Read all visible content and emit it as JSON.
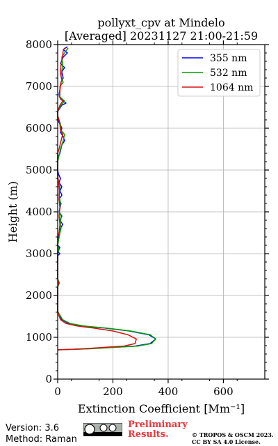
{
  "chart_data": {
    "type": "line",
    "title": "pollyxt_cpv at Mindelo",
    "subtitle": "[Averaged] 20231127 21:00-21:59",
    "xlabel": "Extinction Coefficient [Mm⁻¹]",
    "ylabel": "Height (m)",
    "xlim": [
      0,
      750
    ],
    "ylim": [
      0,
      8000
    ],
    "xticks": [
      "0",
      "200",
      "400",
      "600"
    ],
    "yticks": [
      "0",
      "1000",
      "2000",
      "3000",
      "4000",
      "5000",
      "6000",
      "7000",
      "8000"
    ],
    "grid": true,
    "legend_position": "top-right",
    "series": [
      {
        "name": "355 nm",
        "color": "#0000ff",
        "points": [
          [
            0,
            700
          ],
          [
            90,
            720
          ],
          [
            200,
            760
          ],
          [
            280,
            790
          ],
          [
            335,
            850
          ],
          [
            355,
            960
          ],
          [
            330,
            1060
          ],
          [
            260,
            1150
          ],
          [
            170,
            1220
          ],
          [
            90,
            1270
          ],
          [
            40,
            1330
          ],
          [
            15,
            1420
          ],
          [
            5,
            1550
          ],
          [
            0,
            1620
          ],
          [
            0,
            2200
          ],
          [
            5,
            2300
          ],
          [
            0,
            2400
          ],
          [
            0,
            2950
          ],
          [
            8,
            3000
          ],
          [
            0,
            3050
          ],
          [
            8,
            3150
          ],
          [
            0,
            3200
          ],
          [
            5,
            3500
          ],
          [
            10,
            3600
          ],
          [
            18,
            3700
          ],
          [
            8,
            3800
          ],
          [
            15,
            3900
          ],
          [
            5,
            4000
          ],
          [
            12,
            4200
          ],
          [
            5,
            4300
          ],
          [
            15,
            4400
          ],
          [
            8,
            4500
          ],
          [
            15,
            4600
          ],
          [
            5,
            4700
          ],
          [
            10,
            4800
          ],
          [
            3,
            4900
          ],
          [
            0,
            5000
          ],
          [
            0,
            5300
          ],
          [
            8,
            5400
          ],
          [
            15,
            5600
          ],
          [
            25,
            5700
          ],
          [
            20,
            5800
          ],
          [
            10,
            5900
          ],
          [
            15,
            6000
          ],
          [
            8,
            6100
          ],
          [
            0,
            6200
          ],
          [
            0,
            6400
          ],
          [
            15,
            6550
          ],
          [
            30,
            6600
          ],
          [
            10,
            6700
          ],
          [
            5,
            6800
          ],
          [
            12,
            7100
          ],
          [
            20,
            7200
          ],
          [
            15,
            7350
          ],
          [
            25,
            7450
          ],
          [
            10,
            7550
          ],
          [
            20,
            7700
          ],
          [
            35,
            7800
          ],
          [
            20,
            7880
          ],
          [
            35,
            7950
          ]
        ]
      },
      {
        "name": "532 nm",
        "color": "#00a000",
        "points": [
          [
            0,
            700
          ],
          [
            100,
            720
          ],
          [
            210,
            760
          ],
          [
            290,
            790
          ],
          [
            340,
            850
          ],
          [
            355,
            960
          ],
          [
            335,
            1060
          ],
          [
            265,
            1150
          ],
          [
            175,
            1220
          ],
          [
            95,
            1270
          ],
          [
            45,
            1330
          ],
          [
            18,
            1420
          ],
          [
            6,
            1550
          ],
          [
            0,
            1620
          ],
          [
            0,
            2200
          ],
          [
            6,
            2300
          ],
          [
            0,
            2400
          ],
          [
            0,
            3000
          ],
          [
            5,
            3100
          ],
          [
            0,
            3200
          ],
          [
            8,
            3500
          ],
          [
            12,
            3600
          ],
          [
            10,
            3700
          ],
          [
            12,
            3900
          ],
          [
            6,
            4000
          ],
          [
            10,
            4200
          ],
          [
            5,
            4400
          ],
          [
            8,
            4600
          ],
          [
            0,
            4800
          ],
          [
            0,
            5200
          ],
          [
            10,
            5500
          ],
          [
            20,
            5700
          ],
          [
            25,
            5850
          ],
          [
            12,
            5950
          ],
          [
            10,
            6100
          ],
          [
            0,
            6300
          ],
          [
            0,
            6400
          ],
          [
            12,
            6550
          ],
          [
            25,
            6650
          ],
          [
            8,
            6750
          ],
          [
            8,
            7000
          ],
          [
            20,
            7100
          ],
          [
            12,
            7250
          ],
          [
            18,
            7500
          ],
          [
            15,
            7700
          ],
          [
            25,
            7800
          ],
          [
            30,
            7850
          ],
          [
            38,
            7920
          ]
        ]
      },
      {
        "name": "1064 nm",
        "color": "#dd1010",
        "points": [
          [
            0,
            700
          ],
          [
            80,
            720
          ],
          [
            170,
            760
          ],
          [
            240,
            790
          ],
          [
            280,
            850
          ],
          [
            285,
            960
          ],
          [
            255,
            1060
          ],
          [
            200,
            1150
          ],
          [
            130,
            1220
          ],
          [
            70,
            1270
          ],
          [
            30,
            1330
          ],
          [
            10,
            1420
          ],
          [
            3,
            1550
          ],
          [
            0,
            1620
          ],
          [
            0,
            2200
          ],
          [
            3,
            2300
          ],
          [
            0,
            2400
          ],
          [
            0,
            3400
          ],
          [
            5,
            3500
          ],
          [
            8,
            3700
          ],
          [
            5,
            3900
          ],
          [
            8,
            4100
          ],
          [
            5,
            4300
          ],
          [
            6,
            4500
          ],
          [
            3,
            4700
          ],
          [
            0,
            4900
          ],
          [
            0,
            5400
          ],
          [
            5,
            5500
          ],
          [
            12,
            5700
          ],
          [
            18,
            5850
          ],
          [
            10,
            5950
          ],
          [
            8,
            6100
          ],
          [
            0,
            6300
          ],
          [
            0,
            6400
          ],
          [
            8,
            6550
          ],
          [
            18,
            6650
          ],
          [
            6,
            6750
          ],
          [
            10,
            7050
          ],
          [
            15,
            7150
          ],
          [
            10,
            7300
          ],
          [
            12,
            7550
          ],
          [
            18,
            7750
          ],
          [
            20,
            7850
          ],
          [
            25,
            7920
          ]
        ]
      }
    ]
  },
  "footer": {
    "version": "Version: 3.6",
    "method": "Method: Raman",
    "preliminary_line1": "Preliminary",
    "preliminary_line2": "Results.",
    "copyright_line1": "© TROPOS & OSCM 2023.",
    "copyright_line2": "CC BY SA 4.0 License."
  }
}
